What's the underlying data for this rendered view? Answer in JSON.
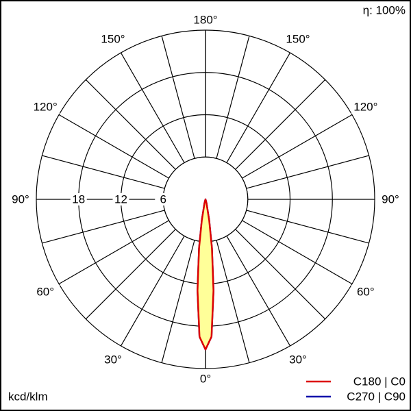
{
  "chart_data": {
    "type": "polar",
    "efficiency_label": "η: 100%",
    "unit_label": "kcd/klm",
    "rlim": [
      0,
      24
    ],
    "rticks": [
      6,
      12,
      18
    ],
    "spokes": [
      0,
      15,
      30,
      45,
      60,
      75,
      90,
      105,
      120,
      135,
      150,
      165,
      180
    ],
    "angle_ticks": [
      {
        "value": 0,
        "label": "0°"
      },
      {
        "value": 30,
        "label": "30°"
      },
      {
        "value": 60,
        "label": "60°"
      },
      {
        "value": 90,
        "label": "90°"
      },
      {
        "value": 120,
        "label": "120°"
      },
      {
        "value": 150,
        "label": "150°"
      },
      {
        "value": 180,
        "label": "180°"
      }
    ],
    "fill_color": "#ffff99",
    "series": [
      {
        "name": "C270 | C90",
        "color": "#0000aa",
        "angles": [
          -20,
          -15,
          -10,
          -7.5,
          -5,
          -2.5,
          0,
          2.5,
          5,
          7.5,
          10,
          15,
          20
        ],
        "values": [
          0,
          0.5,
          3,
          7,
          13,
          19.5,
          21.3,
          19.5,
          13,
          7,
          3,
          0.5,
          0
        ]
      },
      {
        "name": "C180 | C0",
        "color": "#dd0000",
        "angles": [
          -20,
          -15,
          -10,
          -7.5,
          -5,
          -2.5,
          0,
          2.5,
          5,
          7.5,
          10,
          15,
          20
        ],
        "values": [
          0,
          0.5,
          3,
          7,
          13,
          19.5,
          21.3,
          19.5,
          13,
          7,
          3,
          0.5,
          0
        ]
      }
    ]
  }
}
